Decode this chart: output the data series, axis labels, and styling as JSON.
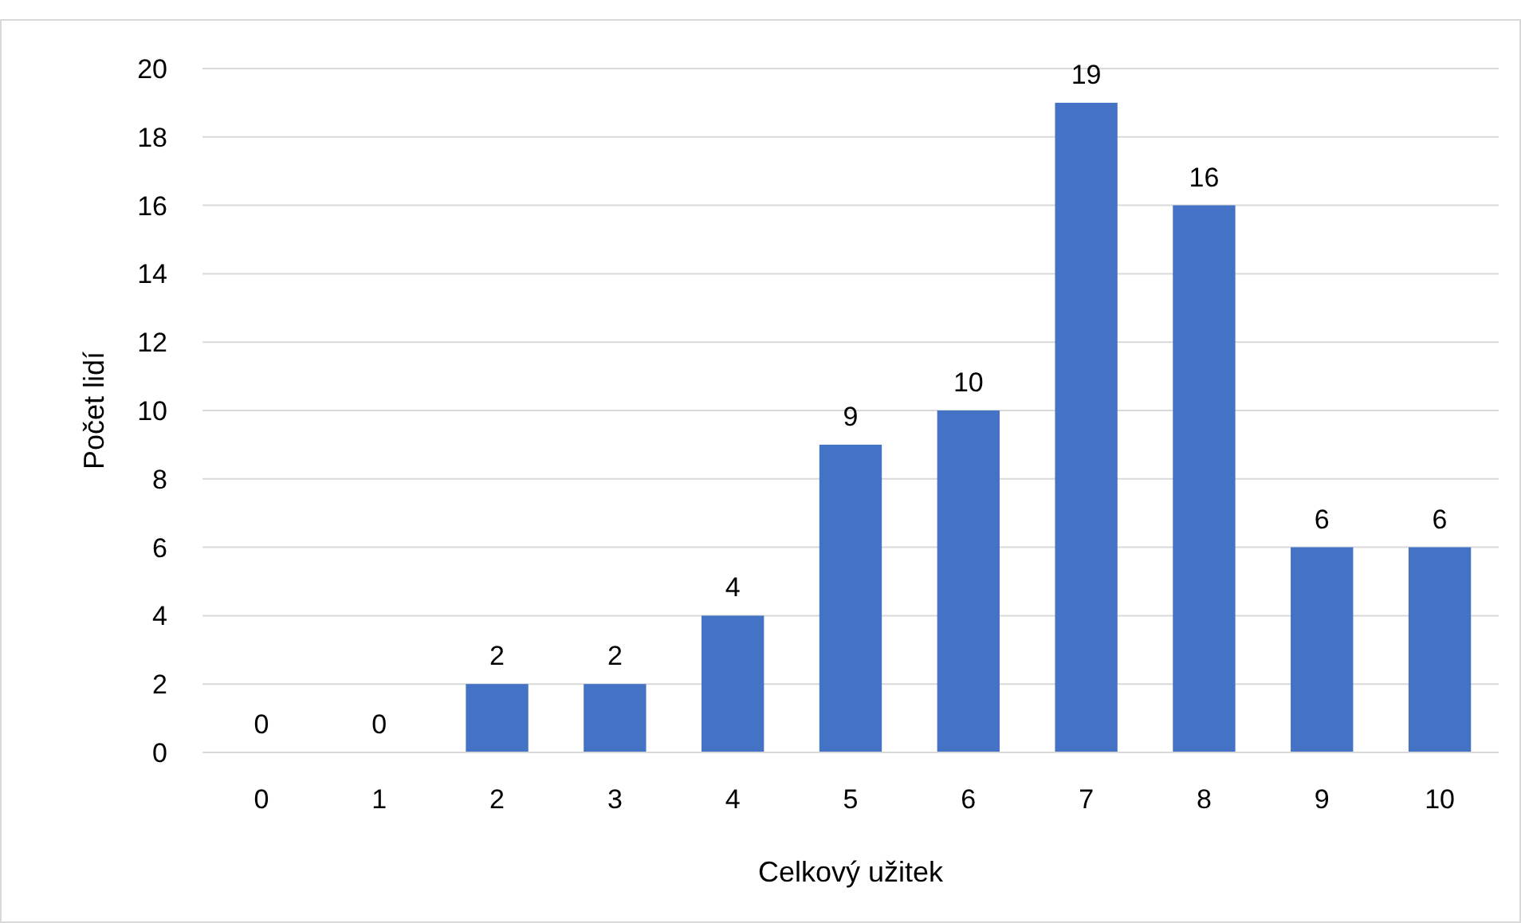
{
  "chart_data": {
    "type": "bar",
    "xlabel": "Celkový užitek",
    "ylabel": "Počet lidí",
    "categories": [
      "0",
      "1",
      "2",
      "3",
      "4",
      "5",
      "6",
      "7",
      "8",
      "9",
      "10"
    ],
    "values": [
      0,
      0,
      2,
      2,
      4,
      9,
      10,
      19,
      16,
      6,
      6
    ],
    "color": "#4472c4",
    "ylim": [
      0,
      20
    ],
    "yticks": [
      0,
      2,
      4,
      6,
      8,
      10,
      12,
      14,
      16,
      18,
      20
    ],
    "grid": "y",
    "data_labels": true
  }
}
